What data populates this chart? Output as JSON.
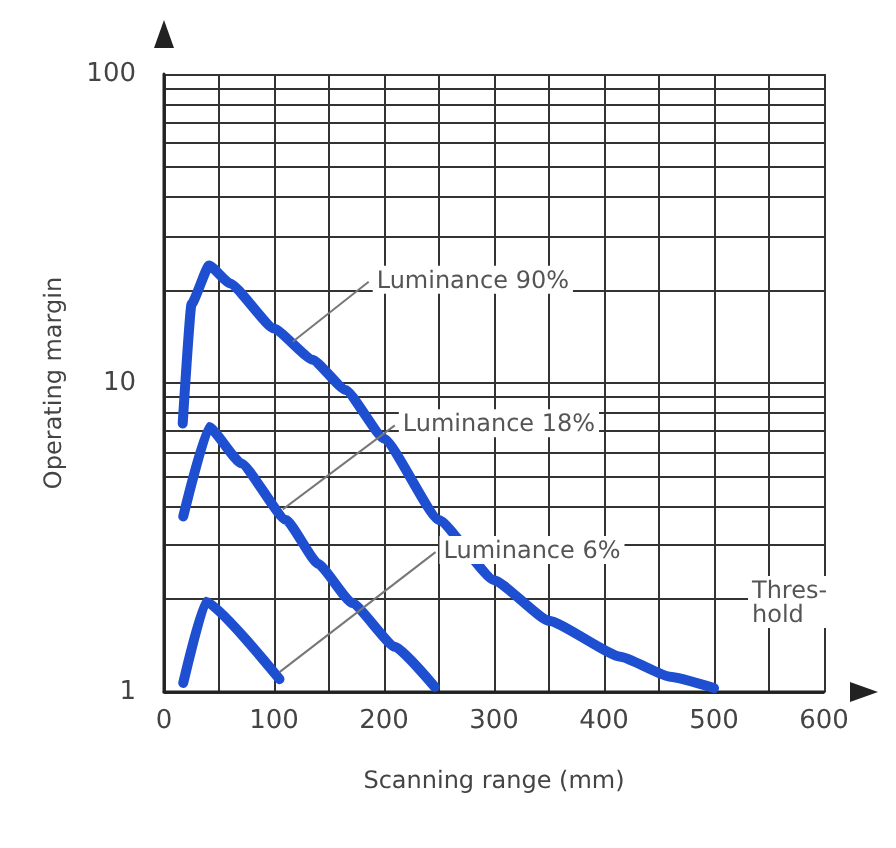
{
  "chart_data": {
    "type": "line",
    "xlabel": "Scanning range (mm)",
    "ylabel": "Operating margin",
    "log": "y",
    "grid": true,
    "marker": "none",
    "line_style": "solid",
    "xlim": [
      0,
      600
    ],
    "ylim": [
      1,
      100
    ],
    "xticks": [
      0,
      {
        "value": 50,
        "label": null
      },
      100,
      {
        "value": 150,
        "label": null
      },
      200,
      {
        "value": 250,
        "label": null
      },
      300,
      {
        "value": 350,
        "label": null
      },
      400,
      {
        "value": 450,
        "label": null
      },
      500,
      {
        "value": 550,
        "label": null
      },
      600
    ],
    "yticks": [
      1,
      {
        "value": 2,
        "label": null
      },
      {
        "value": 3,
        "label": null
      },
      {
        "value": 4,
        "label": null
      },
      {
        "value": 5,
        "label": null
      },
      {
        "value": 6,
        "label": null
      },
      {
        "value": 7,
        "label": null
      },
      {
        "value": 8,
        "label": null
      },
      {
        "value": 9,
        "label": null
      },
      10,
      {
        "value": 20,
        "label": null
      },
      {
        "value": 30,
        "label": null
      },
      {
        "value": 40,
        "label": null
      },
      {
        "value": 50,
        "label": null
      },
      {
        "value": 60,
        "label": null
      },
      {
        "value": 70,
        "label": null
      },
      {
        "value": 80,
        "label": null
      },
      {
        "value": 90,
        "label": null
      },
      100
    ],
    "series": [
      {
        "color": "#1f4fd1",
        "x": [
          17,
          25,
          41,
          60,
          100,
          135,
          165,
          200,
          250,
          300,
          350,
          415,
          460,
          500
        ],
        "values": [
          7.4,
          18,
          24,
          21,
          15,
          11.9,
          9.5,
          6.6,
          3.6,
          2.3,
          1.7,
          1.3,
          1.12,
          1.03
        ]
      },
      {
        "color": "#1f4fd1",
        "x": [
          17.5,
          41,
          70,
          111,
          140,
          171,
          210,
          246
        ],
        "values": [
          3.7,
          7.2,
          5.5,
          3.6,
          2.6,
          1.94,
          1.4,
          1.04
        ]
      },
      {
        "color": "#1f4fd1",
        "x": [
          17.5,
          38,
          105
        ],
        "values": [
          1.07,
          1.96,
          1.1
        ]
      }
    ],
    "annotations": [
      {
        "text": "Luminance 90%",
        "x": 117,
        "y": 13.6
      },
      {
        "text": "Luminance 18%",
        "x": 108,
        "y": 3.9
      },
      {
        "text": "Luminance 6%",
        "x": 105,
        "y": 1.16
      },
      "Thres-\nhold"
    ]
  }
}
